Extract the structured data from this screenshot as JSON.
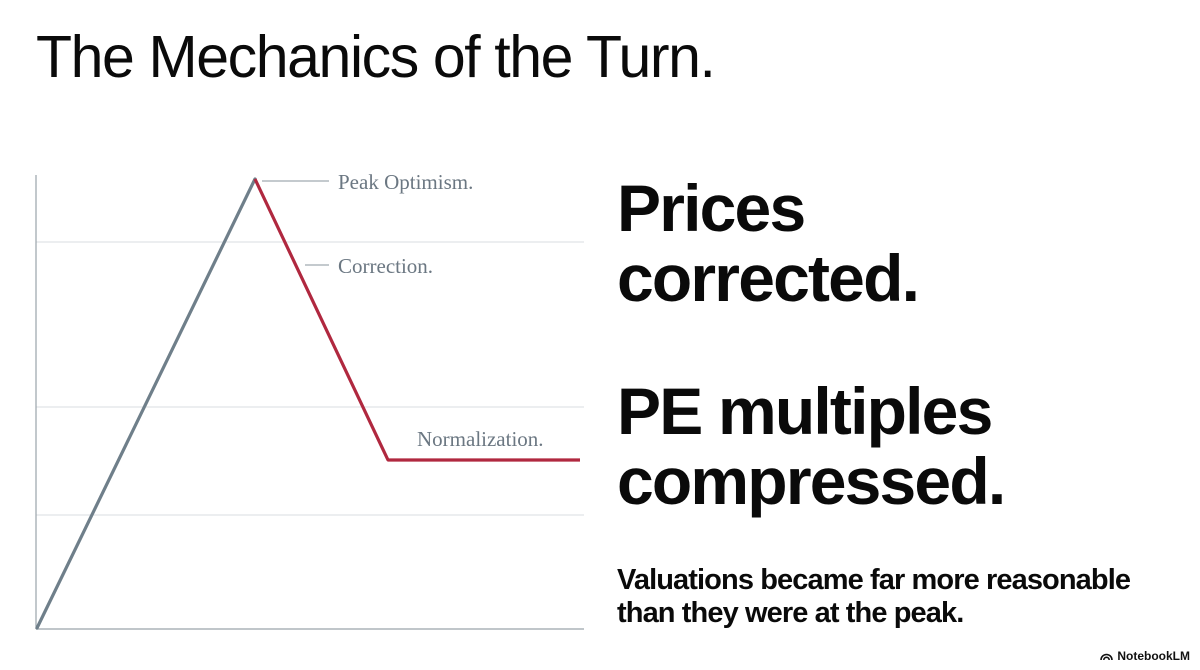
{
  "title": "The Mechanics of the Turn.",
  "diagram": {
    "annotations": {
      "peak": "Peak Optimism.",
      "correction": "Correction.",
      "normalization": "Normalization."
    },
    "colors": {
      "rise": "#6f7f8a",
      "decline": "#b0283f",
      "grid": "#d9dee2",
      "axis": "#9aa3aa"
    }
  },
  "headlines": {
    "line1": "Prices",
    "line2": "corrected.",
    "line3": "PE multiples",
    "line4": "compressed."
  },
  "subtext": {
    "line1": "Valuations became far more reasonable",
    "line2": "than they were at the peak."
  },
  "brand": {
    "icon": "notebooklm-icon",
    "label": "NotebookLM"
  }
}
